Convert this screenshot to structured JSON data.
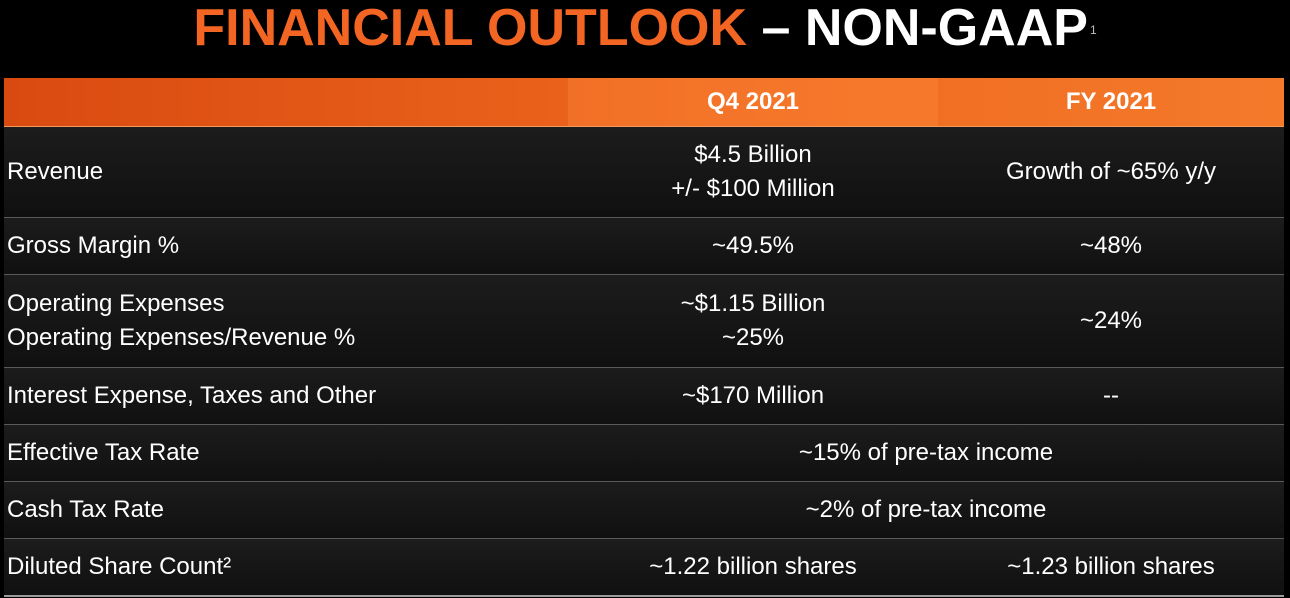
{
  "title": {
    "part1": "FINANCIAL OUTLOOK",
    "part2": " – NON-GAAP",
    "footnote": "1"
  },
  "colors": {
    "title_orange": "#f26522",
    "header_orange": "#f06a20",
    "background": "#000000"
  },
  "table": {
    "columns": [
      "",
      "Q4 2021",
      "FY 2021"
    ],
    "rows": {
      "revenue": {
        "label": "Revenue",
        "q4_line1": "$4.5 Billion",
        "q4_line2": "+/- $100 Million",
        "fy": "Growth of ~65% y/y"
      },
      "gross_margin": {
        "label": "Gross Margin %",
        "q4": "~49.5%",
        "fy": "~48%"
      },
      "opex": {
        "label_line1": "Operating Expenses",
        "label_line2": "Operating Expenses/Revenue %",
        "q4_line1": "~$1.15 Billion",
        "q4_line2": "~25%",
        "fy": "~24%"
      },
      "interest": {
        "label": "Interest Expense, Taxes and Other",
        "q4": "~$170 Million",
        "fy": "--"
      },
      "effective_tax": {
        "label": "Effective Tax Rate",
        "value": "~15% of pre-tax income"
      },
      "cash_tax": {
        "label": "Cash Tax Rate",
        "value": "~2% of pre-tax income"
      },
      "diluted_shares": {
        "label": "Diluted Share Count²",
        "q4": "~1.22 billion shares",
        "fy": "~1.23 billion shares"
      }
    }
  }
}
